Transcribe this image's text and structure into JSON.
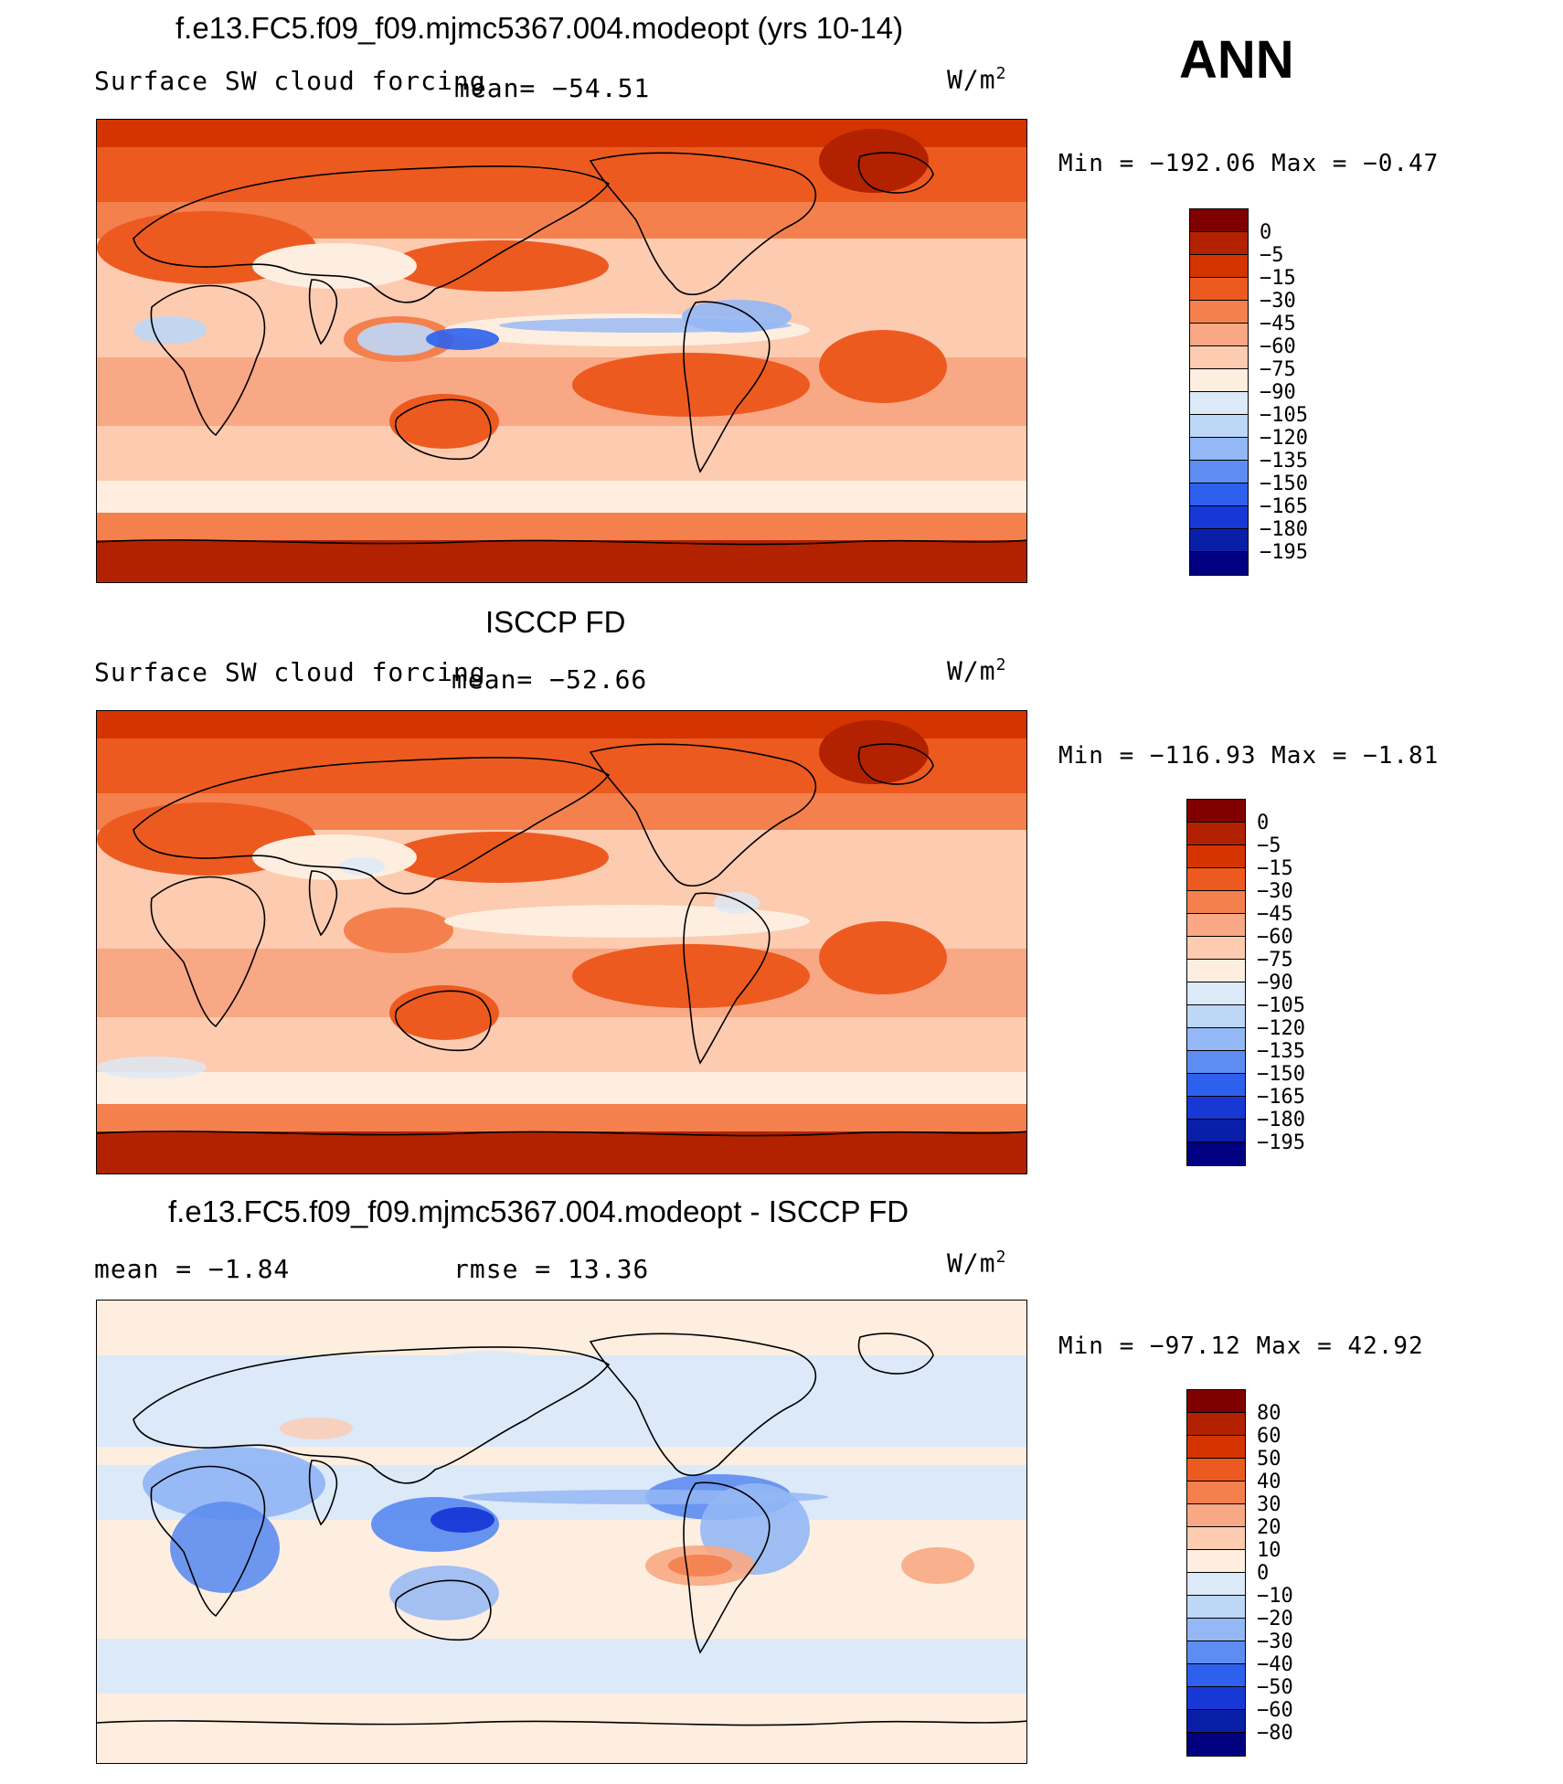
{
  "season": "ANN",
  "units_base": "W/m",
  "units_exp": "2",
  "panels": [
    {
      "title": "f.e13.FC5.f09_f09.mjmc5367.004.modeopt (yrs 10-14)",
      "variable": "Surface SW cloud forcing",
      "stats_left": "",
      "stats_right": "mean=  −54.51",
      "minmax": "Min  =  −192.06  Max  =    −0.47",
      "levels": [
        "0",
        "−5",
        "−15",
        "−30",
        "−45",
        "−60",
        "−75",
        "−90",
        "−105",
        "−120",
        "−135",
        "−150",
        "−165",
        "−180",
        "−195"
      ]
    },
    {
      "title": "ISCCP FD",
      "variable": "Surface SW cloud forcing",
      "stats_left": "",
      "stats_right": "mean=  −52.66",
      "minmax": "Min  =  −116.93  Max  =    −1.81",
      "levels": [
        "0",
        "−5",
        "−15",
        "−30",
        "−45",
        "−60",
        "−75",
        "−90",
        "−105",
        "−120",
        "−135",
        "−150",
        "−165",
        "−180",
        "−195"
      ]
    },
    {
      "title": "f.e13.FC5.f09_f09.mjmc5367.004.modeopt - ISCCP FD",
      "variable": "",
      "stats_left": "mean  =    −1.84",
      "stats_right": "rmse  =    13.36",
      "minmax": "Min  =  −97.12  Max  =    42.92",
      "levels": [
        "80",
        "60",
        "50",
        "40",
        "30",
        "20",
        "10",
        "0",
        "−10",
        "−20",
        "−30",
        "−40",
        "−50",
        "−60",
        "−80"
      ]
    }
  ],
  "colors": {
    "scale16": [
      "#800000",
      "#b22200",
      "#d43400",
      "#ed5a20",
      "#f4804e",
      "#f8a884",
      "#fccbb0",
      "#fdeee0",
      "#dbe9f8",
      "#bdd7f7",
      "#94b7f5",
      "#5d8df0",
      "#2e60ee",
      "#1838d6",
      "#0a1fa8",
      "#000080"
    ],
    "ocean_line": "#000000"
  }
}
